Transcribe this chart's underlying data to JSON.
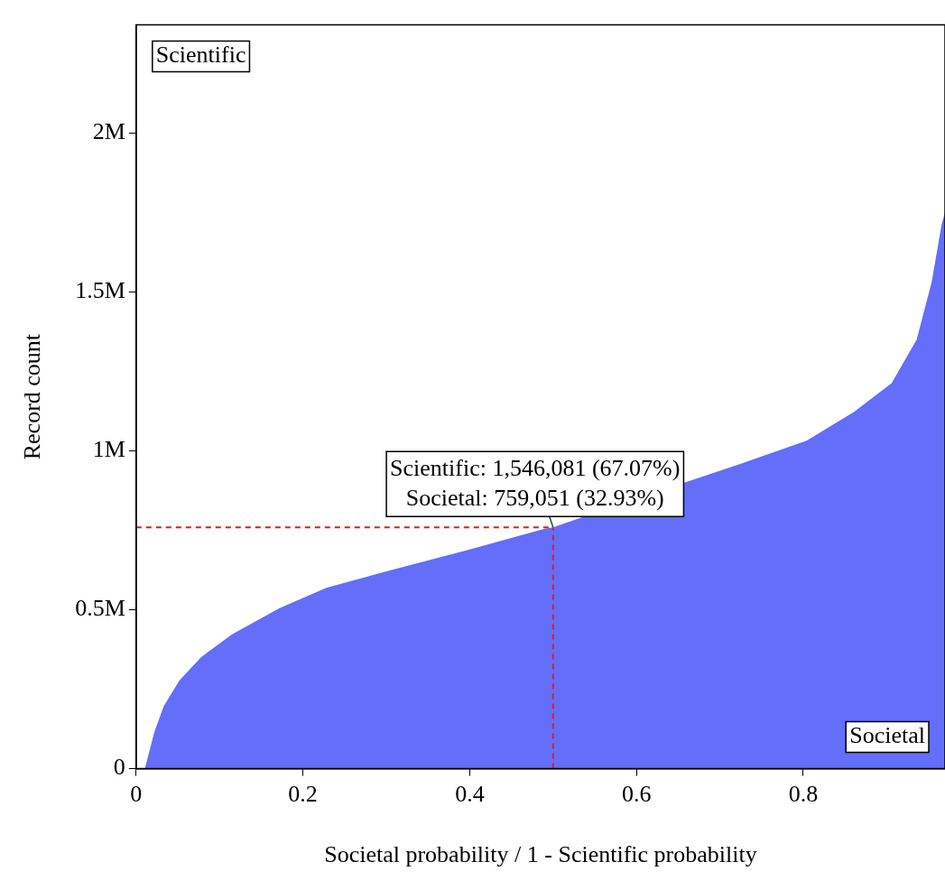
{
  "chart_data": {
    "type": "area",
    "xlabel": "Societal probability / 1 - Scientific probability",
    "ylabel": "Record count",
    "x": [
      0.0105,
      0.0217,
      0.033,
      0.052,
      0.078,
      0.115,
      0.172,
      0.228,
      0.303,
      0.396,
      0.49,
      0.5,
      0.535,
      0.73,
      0.804,
      0.861,
      0.906,
      0.936,
      0.954,
      0.966,
      0.97
    ],
    "series": [
      {
        "color": "#636efa",
        "values": [
          0,
          114000,
          196000,
          278000,
          351000,
          423000,
          505000,
          569000,
          623000,
          687000,
          755000,
          759000,
          791000,
          964000,
          1032000,
          1123000,
          1213000,
          1350000,
          1531000,
          1713000,
          1750000
        ]
      }
    ],
    "xlim": [
      0,
      0.97
    ],
    "xticks": [
      0,
      0.2,
      0.4,
      0.6,
      0.8
    ],
    "ylim": [
      0,
      2340000
    ],
    "yticks": [
      0,
      {
        "value": 500000,
        "label": "0.5M"
      },
      {
        "value": 1000000,
        "label": "1M"
      },
      {
        "value": 1500000,
        "label": "1.5M"
      },
      {
        "value": 2000000,
        "label": "2M"
      }
    ],
    "grid": false,
    "legend": false,
    "ref_lines": [
      {
        "axis": "x",
        "value": 0.5,
        "color": "#e41a1c",
        "line_style": "dashed"
      },
      {
        "axis": "y",
        "value": 759051,
        "color": "#e41a1c",
        "line_style": "dashed"
      }
    ],
    "annotations": [
      "Scientific",
      "Societal",
      {
        "text": "Scientific: 1,546,081 (67.07%)\nSocietal: 759,051 (32.93%)",
        "x": 0.5,
        "y": 759051
      }
    ]
  }
}
